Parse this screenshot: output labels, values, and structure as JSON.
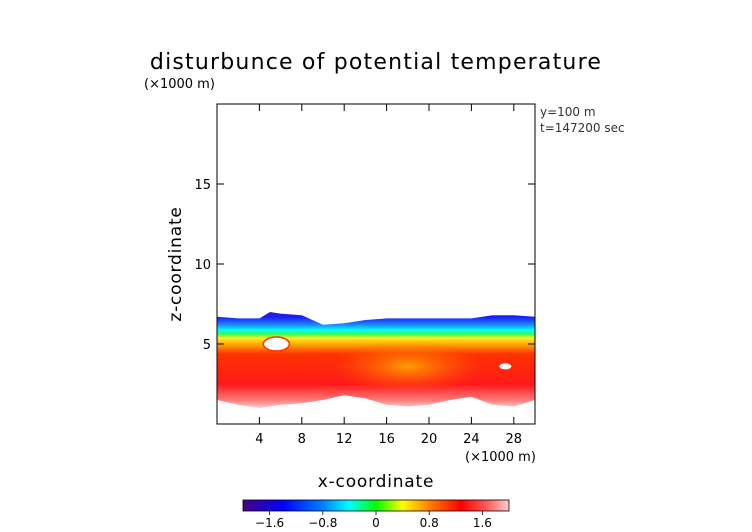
{
  "chart_data": {
    "type": "heatmap",
    "title": "disturbunce of potential temperature",
    "unit_top": "(×1000 m)",
    "unit_bottom": "(×1000 m)",
    "xlabel": "x-coordinate",
    "ylabel": "z-coordinate",
    "annotations": [
      "y=100 m",
      "t=147200 sec"
    ],
    "xlim": [
      0,
      30
    ],
    "ylim": [
      0,
      20
    ],
    "xticks": [
      4,
      8,
      12,
      16,
      20,
      24,
      28
    ],
    "yticks": [
      5,
      10,
      15
    ],
    "colorbar": {
      "ticks": [
        -1.6,
        -0.8,
        0,
        0.8,
        1.6
      ],
      "tick_labels": [
        "−1.6",
        "−0.8",
        "0",
        "0.8",
        "1.6"
      ],
      "range": [
        -2.0,
        2.0
      ],
      "colors": [
        "#4b0082",
        "#0000ff",
        "#00ffff",
        "#00ff00",
        "#ffff00",
        "#ff0000",
        "#ffdddd"
      ]
    },
    "field_top": {
      "x": [
        0,
        2,
        4,
        5,
        6,
        8,
        10,
        12,
        14,
        16,
        18,
        20,
        22,
        24,
        26,
        28,
        30
      ],
      "z": [
        6.7,
        6.6,
        6.6,
        7.0,
        6.9,
        6.8,
        6.2,
        6.3,
        6.5,
        6.6,
        6.6,
        6.6,
        6.6,
        6.6,
        6.8,
        6.8,
        6.7
      ]
    },
    "field_bottom": {
      "x": [
        0,
        2,
        4,
        6,
        8,
        10,
        12,
        14,
        16,
        18,
        20,
        22,
        24,
        26,
        28,
        30
      ],
      "z": [
        1.5,
        1.2,
        1.0,
        1.2,
        1.3,
        1.5,
        1.8,
        1.6,
        1.2,
        1.1,
        1.2,
        1.5,
        1.7,
        1.2,
        1.1,
        1.5
      ]
    }
  }
}
